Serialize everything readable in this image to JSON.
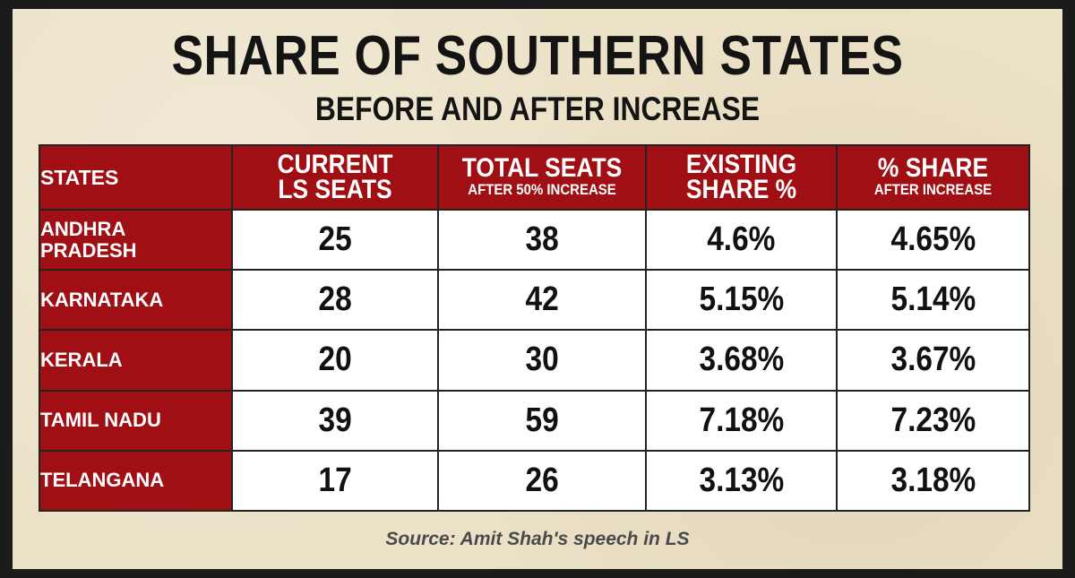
{
  "chart_data": {
    "type": "table",
    "title": "SHARE OF SOUTHERN STATES",
    "subtitle": "BEFORE AND AFTER INCREASE",
    "columns": [
      {
        "line1": "STATES",
        "line2": ""
      },
      {
        "line1": "CURRENT",
        "line2": "LS SEATS"
      },
      {
        "line1": "TOTAL SEATS",
        "line2": "AFTER 50% INCREASE"
      },
      {
        "line1": "EXISTING",
        "line2": "SHARE %"
      },
      {
        "line1": "% SHARE",
        "line2": "AFTER INCREASE"
      }
    ],
    "rows": [
      {
        "state": "ANDHRA PRADESH",
        "current": "25",
        "total": "38",
        "existing": "4.6%",
        "after": "4.65%"
      },
      {
        "state": "KARNATAKA",
        "current": "28",
        "total": "42",
        "existing": "5.15%",
        "after": "5.14%"
      },
      {
        "state": "KERALA",
        "current": "20",
        "total": "30",
        "existing": "3.68%",
        "after": "3.67%"
      },
      {
        "state": "TAMIL NADU",
        "current": "39",
        "total": "59",
        "existing": "7.18%",
        "after": "7.23%"
      },
      {
        "state": "TELANGANA",
        "current": "17",
        "total": "26",
        "existing": "3.13%",
        "after": "3.18%"
      }
    ],
    "source": "Source: Amit Shah's speech in LS"
  },
  "colors": {
    "header_red": "#a00f14",
    "background": "#ece2c8"
  }
}
